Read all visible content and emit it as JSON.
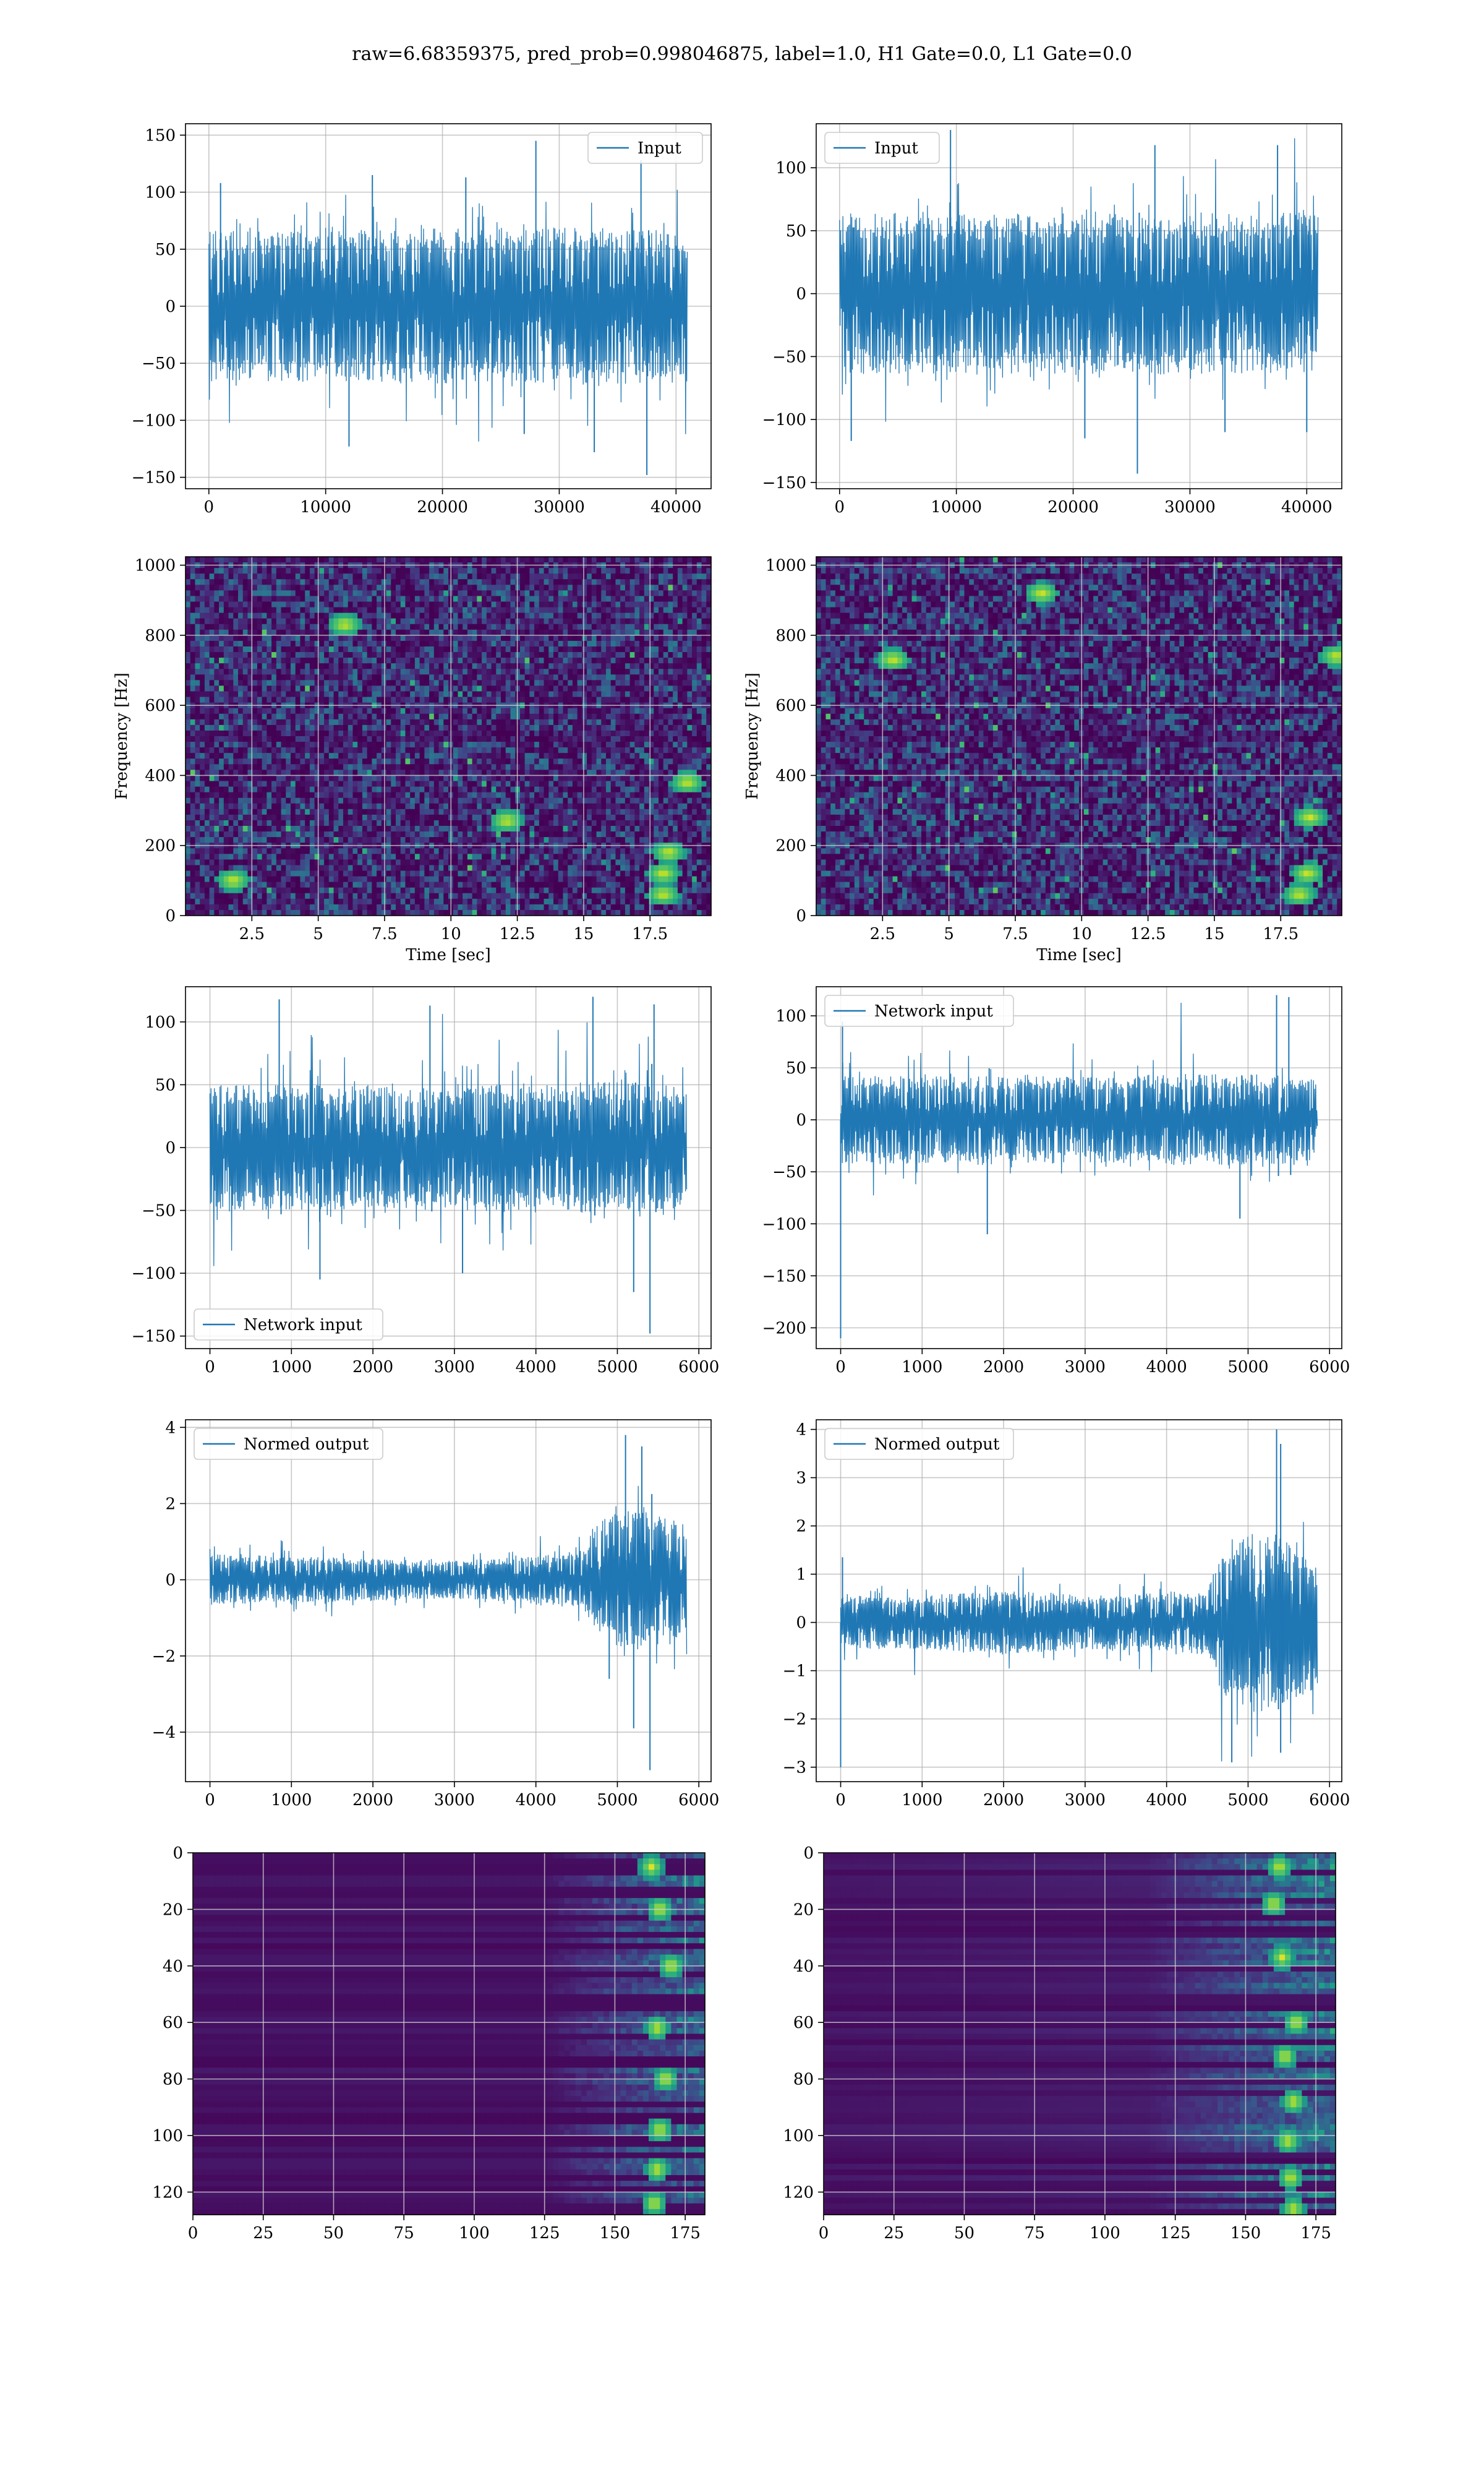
{
  "figure": {
    "title": "raw=6.68359375, pred_prob=0.998046875, label=1.0, H1 Gate=0.0, L1 Gate=0.0"
  },
  "colors": {
    "line": "#1f77b4",
    "grid": "#b0b0b0",
    "viridis_dark": "#440154",
    "viridis_blue": "#3b528b",
    "viridis_teal": "#21918c",
    "viridis_green": "#5ec962",
    "viridis_yellow": "#fde725"
  },
  "chart_data": [
    {
      "id": "h1-input",
      "type": "line",
      "legend": [
        "Input"
      ],
      "legend_loc": "upper right",
      "xlim": [
        -2000,
        43000
      ],
      "ylim": [
        -160,
        160
      ],
      "xticks": [
        0,
        10000,
        20000,
        30000,
        40000
      ],
      "yticks": [
        -150,
        -100,
        -50,
        0,
        50,
        100,
        150
      ],
      "series": [
        {
          "name": "Input",
          "x_range": [
            0,
            40960
          ],
          "envelope": [
            [
              0,
              60
            ],
            [
              10000,
              60
            ],
            [
              20000,
              62
            ],
            [
              30000,
              63
            ],
            [
              40960,
              60
            ]
          ],
          "extremes": [
            [
              1000,
              108
            ],
            [
              14000,
              115
            ],
            [
              22000,
              113
            ],
            [
              28000,
              145
            ],
            [
              37000,
              128
            ],
            [
              12000,
              -123
            ],
            [
              27000,
              -112
            ],
            [
              33000,
              -128
            ],
            [
              37500,
              -148
            ]
          ]
        }
      ],
      "grid": true
    },
    {
      "id": "l1-input",
      "type": "line",
      "legend": [
        "Input"
      ],
      "legend_loc": "upper left",
      "xlim": [
        -2000,
        43000
      ],
      "ylim": [
        -155,
        135
      ],
      "xticks": [
        0,
        10000,
        20000,
        30000,
        40000
      ],
      "yticks": [
        -150,
        -100,
        -50,
        0,
        50,
        100
      ],
      "series": [
        {
          "name": "Input",
          "x_range": [
            0,
            40960
          ],
          "envelope": [
            [
              0,
              58
            ],
            [
              10000,
              57
            ],
            [
              20000,
              58
            ],
            [
              30000,
              58
            ],
            [
              40960,
              57
            ]
          ],
          "extremes": [
            [
              9500,
              130
            ],
            [
              27000,
              118
            ],
            [
              37500,
              118
            ],
            [
              1000,
              -117
            ],
            [
              21000,
              -115
            ],
            [
              25500,
              -143
            ],
            [
              33000,
              -110
            ],
            [
              40000,
              -110
            ]
          ]
        }
      ],
      "grid": true
    },
    {
      "id": "h1-spectrogram",
      "type": "heatmap",
      "xlabel": "Time [sec]",
      "ylabel": "Frequency [Hz]",
      "xlim": [
        0,
        19.8
      ],
      "ylim": [
        0,
        1024
      ],
      "xticks": [
        2.5,
        5.0,
        7.5,
        10.0,
        12.5,
        15.0,
        17.5
      ],
      "yticks": [
        0,
        200,
        400,
        600,
        800,
        1000
      ],
      "colormap": "viridis",
      "hot_spots": [
        [
          18.0,
          60
        ],
        [
          18.0,
          120
        ],
        [
          18.2,
          180
        ],
        [
          18.9,
          380
        ],
        [
          6.0,
          830
        ],
        [
          1.8,
          100
        ],
        [
          12.1,
          270
        ]
      ],
      "grid": true
    },
    {
      "id": "l1-spectrogram",
      "type": "heatmap",
      "xlabel": "Time [sec]",
      "ylabel": "Frequency [Hz]",
      "xlim": [
        0,
        19.8
      ],
      "ylim": [
        0,
        1024
      ],
      "xticks": [
        2.5,
        5.0,
        7.5,
        10.0,
        12.5,
        15.0,
        17.5
      ],
      "yticks": [
        0,
        200,
        400,
        600,
        800,
        1000
      ],
      "colormap": "viridis",
      "hot_spots": [
        [
          18.2,
          60
        ],
        [
          18.5,
          120
        ],
        [
          18.6,
          280
        ],
        [
          2.9,
          730
        ],
        [
          19.6,
          740
        ],
        [
          8.5,
          920
        ]
      ],
      "grid": true
    },
    {
      "id": "h1-network-input",
      "type": "line",
      "legend": [
        "Network input"
      ],
      "legend_loc": "lower left",
      "xlim": [
        -300,
        6150
      ],
      "ylim": [
        -160,
        128
      ],
      "xticks": [
        0,
        1000,
        2000,
        3000,
        4000,
        5000,
        6000
      ],
      "yticks": [
        -150,
        -100,
        -50,
        0,
        50,
        100
      ],
      "series": [
        {
          "name": "Network input",
          "x_range": [
            0,
            5850
          ],
          "envelope": [
            [
              0,
              45
            ],
            [
              1000,
              45
            ],
            [
              2000,
              45
            ],
            [
              3000,
              45
            ],
            [
              4000,
              47
            ],
            [
              5000,
              47
            ],
            [
              5850,
              45
            ]
          ],
          "extremes": [
            [
              850,
              118
            ],
            [
              2700,
              113
            ],
            [
              4700,
              120
            ],
            [
              5450,
              114
            ],
            [
              1350,
              -105
            ],
            [
              3100,
              -100
            ],
            [
              5200,
              -115
            ],
            [
              5400,
              -148
            ]
          ]
        }
      ],
      "grid": true
    },
    {
      "id": "l1-network-input",
      "type": "line",
      "legend": [
        "Network input"
      ],
      "legend_loc": "upper left",
      "xlim": [
        -300,
        6150
      ],
      "ylim": [
        -220,
        128
      ],
      "xticks": [
        0,
        1000,
        2000,
        3000,
        4000,
        5000,
        6000
      ],
      "yticks": [
        -200,
        -150,
        -100,
        -50,
        0,
        50,
        100
      ],
      "series": [
        {
          "name": "Network input",
          "x_range": [
            0,
            5850
          ],
          "envelope": [
            [
              0,
              38
            ],
            [
              1000,
              38
            ],
            [
              2000,
              38
            ],
            [
              3000,
              38
            ],
            [
              4000,
              39
            ],
            [
              5000,
              40
            ],
            [
              5850,
              36
            ]
          ],
          "extremes": [
            [
              5350,
              120
            ],
            [
              5500,
              118
            ],
            [
              1800,
              -110
            ],
            [
              4900,
              -95
            ],
            [
              0,
              -210
            ]
          ]
        }
      ],
      "grid": true
    },
    {
      "id": "h1-normed-output",
      "type": "line",
      "legend": [
        "Normed output"
      ],
      "legend_loc": "upper left",
      "xlim": [
        -300,
        6150
      ],
      "ylim": [
        -5.3,
        4.2
      ],
      "xticks": [
        0,
        1000,
        2000,
        3000,
        4000,
        5000,
        6000
      ],
      "yticks": [
        -4,
        -2,
        0,
        2,
        4
      ],
      "series": [
        {
          "name": "Normed output",
          "x_range": [
            0,
            5850
          ],
          "envelope": [
            [
              0,
              0.6
            ],
            [
              1000,
              0.55
            ],
            [
              2000,
              0.5
            ],
            [
              3000,
              0.45
            ],
            [
              4000,
              0.55
            ],
            [
              4600,
              0.7
            ],
            [
              4800,
              1.5
            ],
            [
              5200,
              1.7
            ],
            [
              5600,
              1.5
            ],
            [
              5850,
              1.3
            ]
          ],
          "extremes": [
            [
              5100,
              3.8
            ],
            [
              5300,
              3.5
            ],
            [
              5200,
              -3.9
            ],
            [
              5400,
              -5.0
            ],
            [
              4900,
              -2.6
            ]
          ]
        }
      ],
      "grid": true
    },
    {
      "id": "l1-normed-output",
      "type": "line",
      "legend": [
        "Normed output"
      ],
      "legend_loc": "upper left",
      "xlim": [
        -300,
        6150
      ],
      "ylim": [
        -3.3,
        4.2
      ],
      "xticks": [
        0,
        1000,
        2000,
        3000,
        4000,
        5000,
        6000
      ],
      "yticks": [
        -3,
        -2,
        -1,
        0,
        1,
        2,
        3,
        4
      ],
      "series": [
        {
          "name": "Normed output",
          "x_range": [
            0,
            5850
          ],
          "envelope": [
            [
              0,
              0.5
            ],
            [
              1000,
              0.5
            ],
            [
              2000,
              0.6
            ],
            [
              3000,
              0.5
            ],
            [
              4000,
              0.55
            ],
            [
              4500,
              0.6
            ],
            [
              4700,
              1.4
            ],
            [
              5200,
              1.8
            ],
            [
              5600,
              1.5
            ],
            [
              5850,
              1.2
            ]
          ],
          "extremes": [
            [
              5350,
              4.0
            ],
            [
              5400,
              3.7
            ],
            [
              4800,
              -2.9
            ],
            [
              5400,
              -2.7
            ],
            [
              0,
              -3.0
            ]
          ]
        }
      ],
      "grid": true
    },
    {
      "id": "h1-output-heatmap",
      "type": "heatmap",
      "xlim": [
        0,
        182
      ],
      "ylim": [
        128,
        0
      ],
      "xticks": [
        0,
        25,
        50,
        75,
        100,
        125,
        150,
        175
      ],
      "yticks": [
        0,
        20,
        40,
        60,
        80,
        100,
        120
      ],
      "colormap": "viridis",
      "active_columns": [
        125,
        182
      ],
      "hot_spots": [
        [
          163,
          5
        ],
        [
          166,
          20
        ],
        [
          170,
          40
        ],
        [
          165,
          62
        ],
        [
          168,
          80
        ],
        [
          166,
          98
        ],
        [
          165,
          112
        ],
        [
          164,
          124
        ]
      ],
      "grid": true
    },
    {
      "id": "l1-output-heatmap",
      "type": "heatmap",
      "xlim": [
        0,
        182
      ],
      "ylim": [
        128,
        0
      ],
      "xticks": [
        0,
        25,
        50,
        75,
        100,
        125,
        150,
        175
      ],
      "yticks": [
        0,
        20,
        40,
        60,
        80,
        100,
        120
      ],
      "colormap": "viridis",
      "active_columns": [
        115,
        182
      ],
      "hot_spots": [
        [
          162,
          5
        ],
        [
          160,
          18
        ],
        [
          163,
          37
        ],
        [
          168,
          60
        ],
        [
          164,
          72
        ],
        [
          167,
          88
        ],
        [
          165,
          102
        ],
        [
          166,
          115
        ],
        [
          167,
          126
        ]
      ],
      "grid": true
    }
  ]
}
